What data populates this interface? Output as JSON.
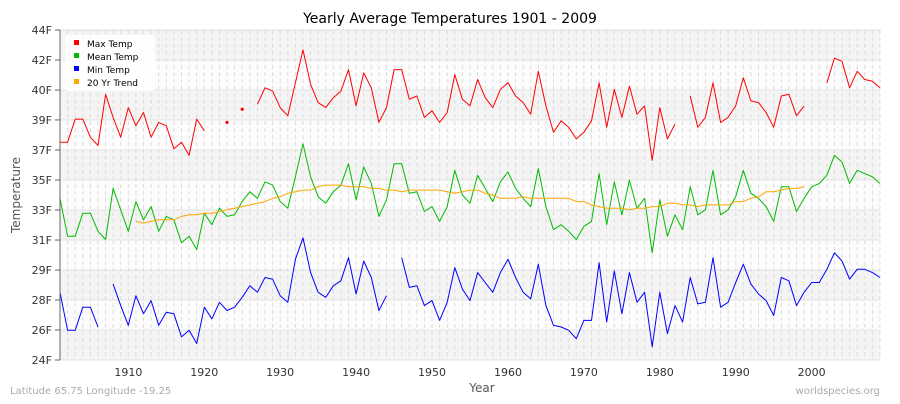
{
  "chart_data": {
    "type": "line",
    "title": "Yearly Average Temperatures 1901 - 2009",
    "xlabel": "Year",
    "ylabel": "Temperature",
    "xlim": [
      1901,
      2009
    ],
    "ylim": [
      24,
      44
    ],
    "grid": true,
    "legend_position": "top-left",
    "xticks": [
      1910,
      1920,
      1930,
      1940,
      1950,
      1960,
      1970,
      1980,
      1990,
      2000
    ],
    "yticks": [
      {
        "value": 24,
        "label": "24F"
      },
      {
        "value": 25.82,
        "label": "26F"
      },
      {
        "value": 27.64,
        "label": "28F"
      },
      {
        "value": 29.45,
        "label": "29F"
      },
      {
        "value": 31.27,
        "label": "31F"
      },
      {
        "value": 33.09,
        "label": "33F"
      },
      {
        "value": 34.91,
        "label": "35F"
      },
      {
        "value": 36.73,
        "label": "37F"
      },
      {
        "value": 38.55,
        "label": "39F"
      },
      {
        "value": 40.36,
        "label": "40F"
      },
      {
        "value": 42.18,
        "label": "42F"
      },
      {
        "value": 44,
        "label": "44F"
      }
    ],
    "x_start": 1901,
    "series": [
      {
        "name": "Max Temp",
        "color": "#ff0000",
        "values": [
          37.2,
          37.2,
          38.6,
          38.6,
          37.5,
          37.0,
          40.1,
          38.7,
          37.5,
          39.3,
          38.2,
          39.0,
          37.5,
          38.4,
          38.2,
          36.8,
          37.2,
          36.4,
          38.6,
          37.9,
          null,
          null,
          38.4,
          null,
          39.2,
          null,
          39.5,
          40.5,
          40.3,
          39.3,
          38.8,
          40.8,
          42.8,
          40.7,
          39.6,
          39.3,
          39.9,
          40.3,
          41.6,
          39.4,
          41.4,
          40.5,
          38.4,
          39.3,
          41.6,
          41.6,
          39.8,
          40.0,
          38.7,
          39.1,
          38.4,
          39.0,
          41.3,
          39.8,
          39.4,
          41.0,
          39.9,
          39.3,
          40.4,
          40.8,
          40.0,
          39.6,
          38.9,
          41.5,
          39.4,
          37.8,
          38.5,
          38.1,
          37.4,
          37.8,
          38.5,
          40.8,
          38.1,
          40.4,
          38.7,
          40.6,
          38.9,
          39.4,
          36.1,
          39.3,
          37.4,
          38.3,
          null,
          40.0,
          38.1,
          38.7,
          40.8,
          38.4,
          38.7,
          39.4,
          41.1,
          39.7,
          39.6,
          39.0,
          38.1,
          40.0,
          40.1,
          38.8,
          39.4,
          null,
          null,
          40.8,
          42.3,
          42.1,
          40.5,
          41.5,
          41.0,
          40.9,
          40.5
        ]
      },
      {
        "name": "Mean Temp",
        "color": "#00bb00",
        "values": [
          33.8,
          31.5,
          31.5,
          32.9,
          32.9,
          31.8,
          31.3,
          34.4,
          33.1,
          31.8,
          33.6,
          32.5,
          33.3,
          31.8,
          32.7,
          32.5,
          31.1,
          31.5,
          30.7,
          32.9,
          32.2,
          33.2,
          32.7,
          32.8,
          33.6,
          34.2,
          33.8,
          34.8,
          34.6,
          33.6,
          33.2,
          35.1,
          37.1,
          35.1,
          33.9,
          33.5,
          34.2,
          34.6,
          35.9,
          33.7,
          35.7,
          34.7,
          32.7,
          33.7,
          35.9,
          35.9,
          34.1,
          34.2,
          33.0,
          33.3,
          32.4,
          33.3,
          35.5,
          34.0,
          33.5,
          35.2,
          34.4,
          33.6,
          34.8,
          35.4,
          34.4,
          33.8,
          33.3,
          35.6,
          33.3,
          31.9,
          32.2,
          31.8,
          31.3,
          32.1,
          32.4,
          35.3,
          32.2,
          34.8,
          32.8,
          34.9,
          33.2,
          33.8,
          30.5,
          33.7,
          31.5,
          32.8,
          31.9,
          34.5,
          32.8,
          33.1,
          35.5,
          32.8,
          33.1,
          33.9,
          35.5,
          34.1,
          33.8,
          33.3,
          32.4,
          34.5,
          34.5,
          33.0,
          33.8,
          34.5,
          34.7,
          35.2,
          36.4,
          36.0,
          34.7,
          35.5,
          35.3,
          35.1,
          34.7
        ]
      },
      {
        "name": "Min Temp",
        "color": "#0000ff",
        "values": [
          28.1,
          25.8,
          25.8,
          27.2,
          27.2,
          26.0,
          null,
          28.6,
          27.3,
          26.1,
          27.9,
          26.8,
          27.6,
          26.1,
          26.9,
          26.8,
          25.4,
          25.8,
          25.0,
          27.2,
          26.5,
          27.5,
          27.0,
          27.2,
          27.8,
          28.5,
          28.1,
          29.0,
          28.9,
          27.9,
          27.5,
          30.1,
          31.4,
          29.3,
          28.1,
          27.8,
          28.5,
          28.8,
          30.2,
          28.0,
          30.0,
          29.0,
          27.0,
          27.9,
          null,
          30.2,
          28.4,
          28.5,
          27.3,
          27.6,
          26.4,
          27.5,
          29.6,
          28.3,
          27.6,
          29.3,
          28.7,
          28.1,
          29.3,
          30.1,
          29.0,
          28.1,
          27.7,
          29.8,
          27.3,
          26.1,
          26.0,
          25.8,
          25.3,
          26.4,
          26.4,
          29.9,
          26.3,
          29.4,
          26.8,
          29.3,
          27.5,
          28.1,
          24.8,
          28.1,
          25.6,
          27.3,
          26.3,
          29.0,
          27.4,
          27.5,
          30.2,
          27.2,
          27.5,
          28.7,
          29.8,
          28.6,
          28.0,
          27.6,
          26.7,
          29.0,
          28.8,
          27.3,
          28.1,
          28.7,
          28.7,
          29.5,
          30.5,
          30.0,
          28.9,
          29.5,
          29.5,
          29.3,
          29.0
        ]
      },
      {
        "name": "20 Yr Trend",
        "color": "#ffa500",
        "values": [
          null,
          null,
          null,
          null,
          null,
          null,
          null,
          null,
          null,
          null,
          32.4,
          32.3,
          32.4,
          32.5,
          32.5,
          32.5,
          32.7,
          32.8,
          32.8,
          32.9,
          32.9,
          33.0,
          33.1,
          33.2,
          33.3,
          33.4,
          33.5,
          33.6,
          33.8,
          33.9,
          34.1,
          34.2,
          34.3,
          34.3,
          34.5,
          34.6,
          34.6,
          34.6,
          34.5,
          34.5,
          34.5,
          34.4,
          34.4,
          34.3,
          34.3,
          34.2,
          34.3,
          34.3,
          34.3,
          34.3,
          34.3,
          34.2,
          34.1,
          34.2,
          34.3,
          34.3,
          34.1,
          34.0,
          33.8,
          33.8,
          33.8,
          33.9,
          33.8,
          33.8,
          33.8,
          33.8,
          33.8,
          33.8,
          33.6,
          33.6,
          33.4,
          33.3,
          33.2,
          33.2,
          33.2,
          33.1,
          33.2,
          33.2,
          33.3,
          33.3,
          33.5,
          33.5,
          33.4,
          33.4,
          33.3,
          33.4,
          33.4,
          33.4,
          33.4,
          33.6,
          33.6,
          33.8,
          33.9,
          34.2,
          34.2,
          34.3,
          34.4,
          34.4,
          34.5,
          null,
          null,
          null,
          null,
          null,
          null,
          null,
          null,
          null,
          null
        ]
      }
    ]
  },
  "footer": {
    "location": "Latitude 65.75 Longitude -19.25",
    "source": "worldspecies.org"
  }
}
